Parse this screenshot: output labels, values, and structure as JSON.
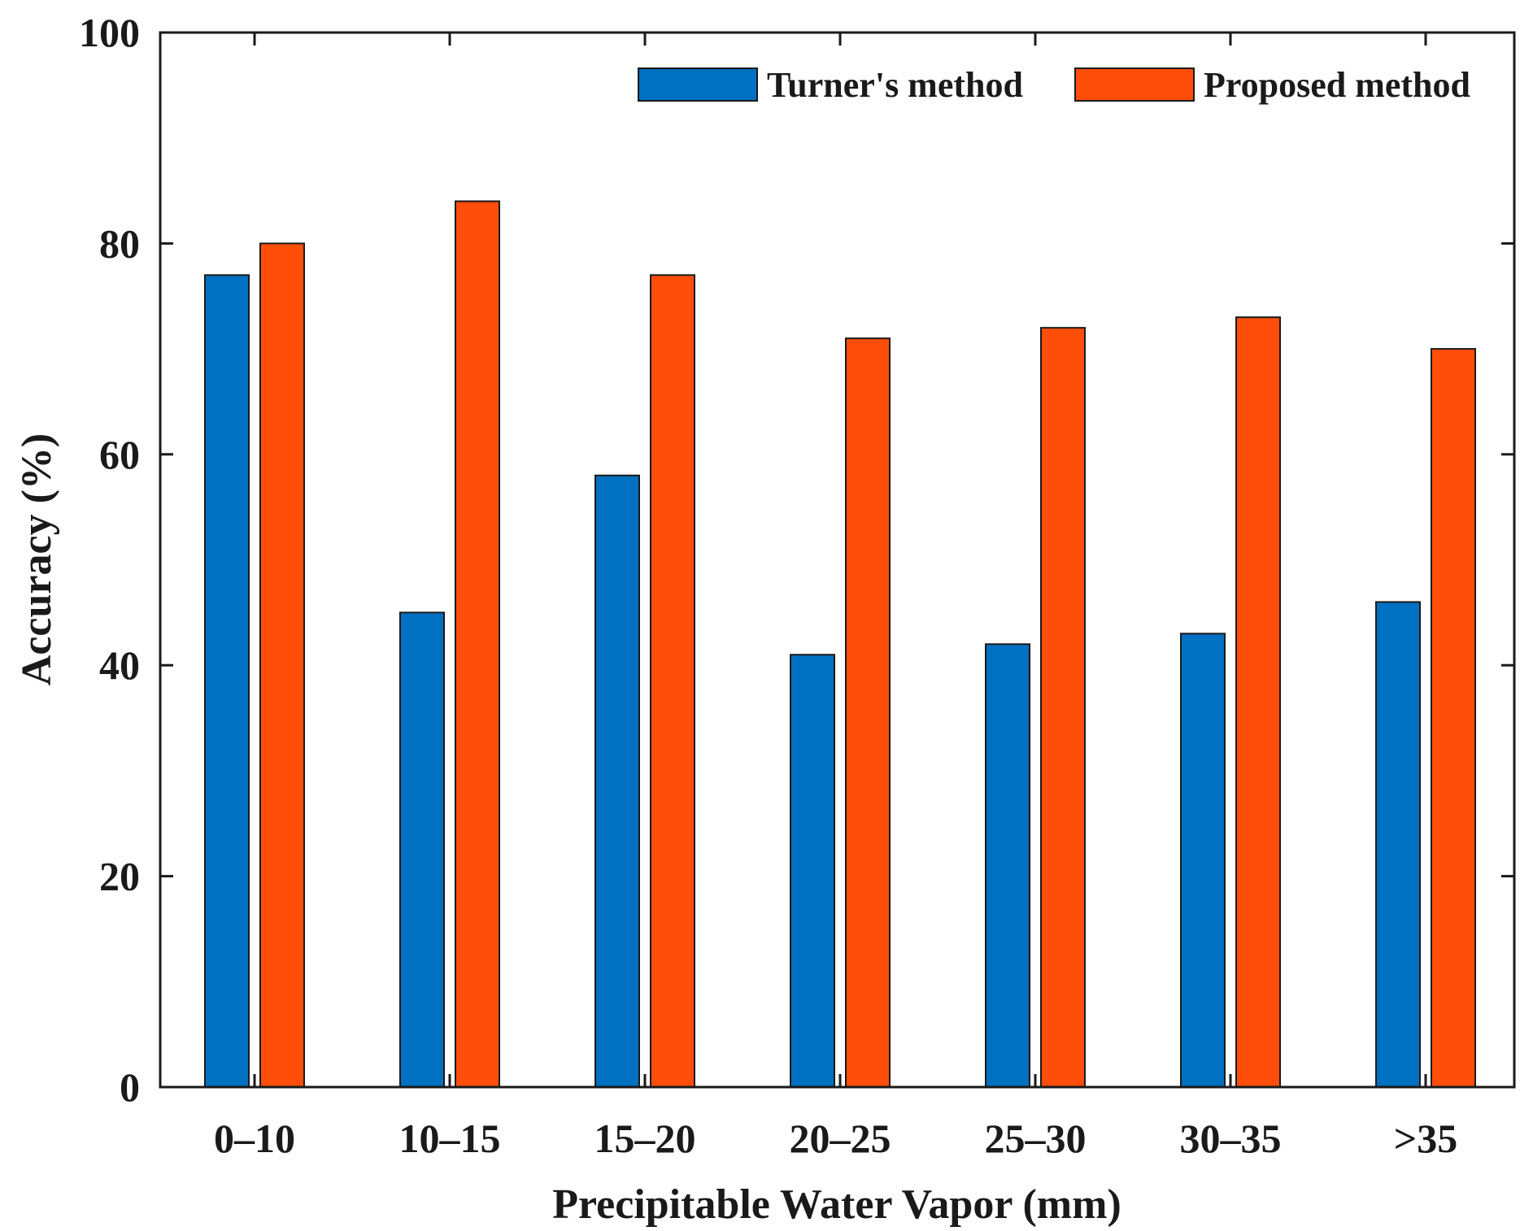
{
  "chart_data": {
    "type": "bar",
    "title": "",
    "xlabel": "Precipitable Water Vapor (mm)",
    "ylabel": "Accuracy (%)",
    "ylim": [
      0,
      100
    ],
    "yticks": [
      "0",
      "20",
      "40",
      "60",
      "80",
      "100"
    ],
    "categories": [
      "0–10",
      "10–15",
      "15–20",
      "20–25",
      "25–30",
      "30–35",
      ">35"
    ],
    "series": [
      {
        "name": "Turner's method",
        "color": "#0070C0",
        "values": [
          77,
          45,
          58,
          41,
          42,
          43,
          46
        ]
      },
      {
        "name": "Proposed method",
        "color": "#FF4E0A",
        "values": [
          80,
          84,
          77,
          71,
          72,
          73,
          70
        ]
      }
    ],
    "legend": {
      "position": "top-right",
      "orientation": "horizontal"
    },
    "grid": false
  }
}
